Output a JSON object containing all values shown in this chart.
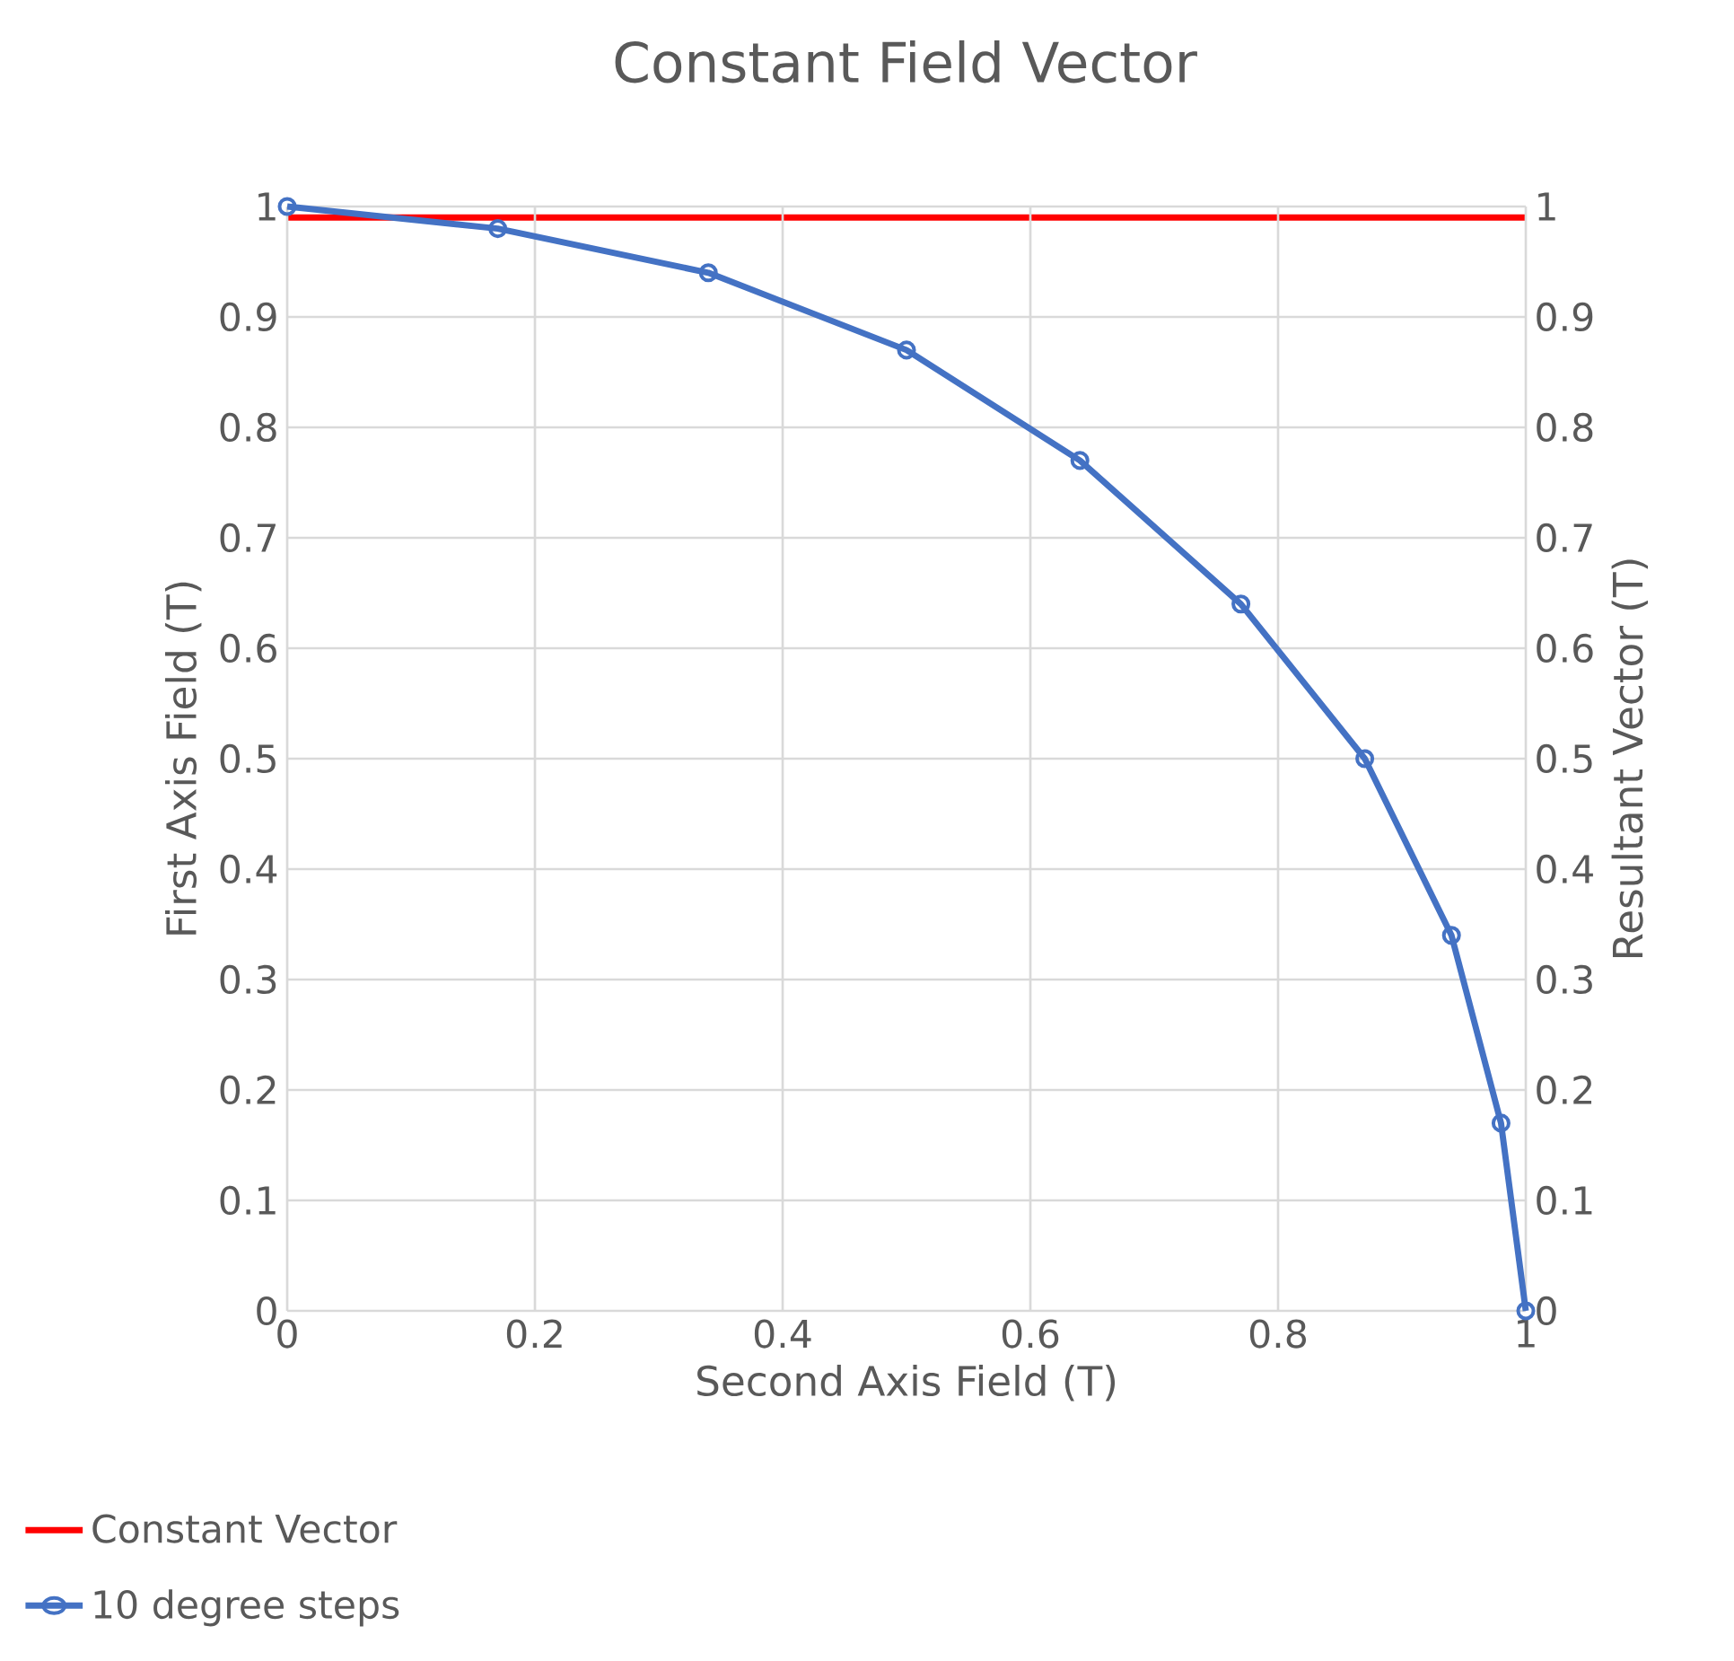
{
  "chart_data": {
    "type": "line",
    "title": "Constant Field Vector",
    "xlabel": "Second Axis Field (T)",
    "ylabel": "First Axis Field (T)",
    "y2label": "Resultant Vector (T)",
    "xlim": [
      0,
      1
    ],
    "xticks": [
      0,
      0.2,
      0.4,
      0.6,
      0.8,
      1
    ],
    "ylim": [
      0,
      1
    ],
    "yticks": [
      0,
      0.1,
      0.2,
      0.3,
      0.4,
      0.5,
      0.6,
      0.7,
      0.8,
      0.9,
      1
    ],
    "y2lim": [
      0,
      1
    ],
    "y2ticks": [
      0,
      0.1,
      0.2,
      0.3,
      0.4,
      0.5,
      0.6,
      0.7,
      0.8,
      0.9,
      1
    ],
    "grid": true,
    "legend": "bottom left",
    "series": [
      {
        "name": "Constant Vector",
        "color": "#ff0000",
        "axis": "y2",
        "marker": "none",
        "x": [
          0,
          1
        ],
        "values": [
          0.99,
          0.99
        ]
      },
      {
        "name": "10 degree steps",
        "color": "#4472c4",
        "marker": "circle",
        "x": [
          0,
          0.17,
          0.34,
          0.5,
          0.64,
          0.77,
          0.87,
          0.94,
          0.98,
          1
        ],
        "values": [
          1,
          0.98,
          0.94,
          0.87,
          0.77,
          0.64,
          0.5,
          0.34,
          0.17,
          0
        ]
      }
    ]
  }
}
